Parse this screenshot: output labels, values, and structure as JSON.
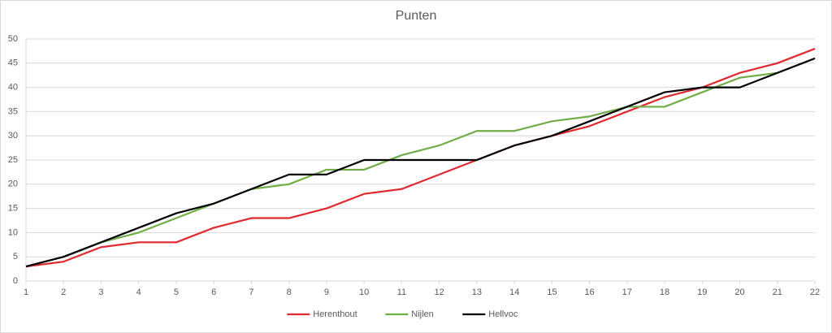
{
  "chart_data": {
    "type": "line",
    "title": "Punten",
    "x": [
      1,
      2,
      3,
      4,
      5,
      6,
      7,
      8,
      9,
      10,
      11,
      12,
      13,
      14,
      15,
      16,
      17,
      18,
      19,
      20,
      21,
      22
    ],
    "xlim": [
      1,
      22
    ],
    "xticks": [
      1,
      2,
      3,
      4,
      5,
      6,
      7,
      8,
      9,
      10,
      11,
      12,
      13,
      14,
      15,
      16,
      17,
      18,
      19,
      20,
      21,
      22
    ],
    "ylim": [
      0,
      50
    ],
    "yticks": [
      0,
      5,
      10,
      15,
      20,
      25,
      30,
      35,
      40,
      45,
      50
    ],
    "grid": true,
    "legend": "bottom",
    "series": [
      {
        "name": "Herenthout",
        "color": "#e0282e",
        "values": [
          3,
          4,
          7,
          8,
          8,
          11,
          13,
          13,
          15,
          18,
          19,
          22,
          25,
          28,
          30,
          32,
          35,
          38,
          40,
          43,
          45,
          48
        ]
      },
      {
        "name": "Nijlen",
        "color": "#70ad47",
        "values": [
          3,
          5,
          8,
          10,
          13,
          16,
          19,
          20,
          23,
          23,
          26,
          28,
          31,
          31,
          33,
          34,
          36,
          36,
          39,
          42,
          43,
          46
        ]
      },
      {
        "name": "Hellvoc",
        "color": "#000000",
        "values": [
          3,
          5,
          8,
          11,
          14,
          16,
          19,
          22,
          22,
          25,
          25,
          25,
          25,
          28,
          30,
          33,
          36,
          39,
          40,
          40,
          43,
          46
        ]
      }
    ]
  }
}
